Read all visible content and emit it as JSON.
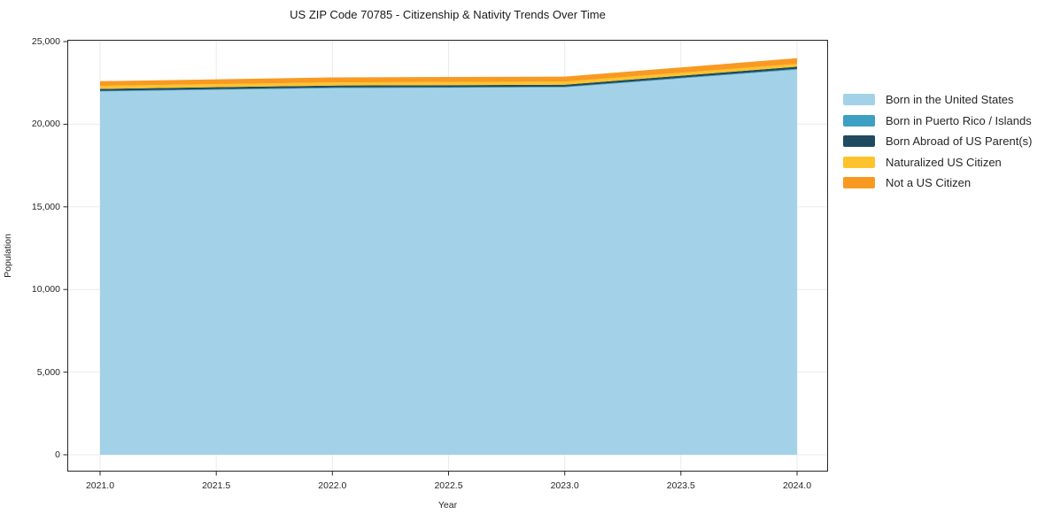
{
  "figure": {
    "title": "US ZIP Code 70785 - Citizenship & Nativity Trends Over Time",
    "xlabel": "Year",
    "ylabel": "Population"
  },
  "chart_data": {
    "type": "area",
    "stacked": true,
    "title": "US ZIP Code 70785 - Citizenship & Nativity Trends Over Time",
    "xlabel": "Year",
    "ylabel": "Population",
    "x": [
      2021,
      2022,
      2023,
      2024
    ],
    "series": [
      {
        "name": "Born in the United States",
        "color": "#a3d2e8",
        "values": [
          21980,
          22180,
          22230,
          23300
        ]
      },
      {
        "name": "Born in Puerto Rico / Islands",
        "color": "#3d9fc1",
        "values": [
          40,
          40,
          40,
          50
        ]
      },
      {
        "name": "Born Abroad of US Parent(s)",
        "color": "#1f4a5f",
        "values": [
          120,
          120,
          120,
          130
        ]
      },
      {
        "name": "Naturalized US Citizen",
        "color": "#fcc32d",
        "values": [
          180,
          190,
          190,
          170
        ]
      },
      {
        "name": "Not a US Citizen",
        "color": "#f89a22",
        "values": [
          280,
          300,
          300,
          350
        ]
      }
    ],
    "x_ticks": [
      {
        "value": 2021.0,
        "label": "2021.0"
      },
      {
        "value": 2021.5,
        "label": "2021.5"
      },
      {
        "value": 2022.0,
        "label": "2022.0"
      },
      {
        "value": 2022.5,
        "label": "2022.5"
      },
      {
        "value": 2023.0,
        "label": "2023.0"
      },
      {
        "value": 2023.5,
        "label": "2023.5"
      },
      {
        "value": 2024.0,
        "label": "2024.0"
      }
    ],
    "y_ticks": [
      {
        "value": 0,
        "label": "0"
      },
      {
        "value": 5000,
        "label": "5,000"
      },
      {
        "value": 10000,
        "label": "10,000"
      },
      {
        "value": 15000,
        "label": "15,000"
      },
      {
        "value": 20000,
        "label": "20,000"
      },
      {
        "value": 25000,
        "label": "25,000"
      }
    ],
    "xlim": [
      2020.86,
      2024.13
    ],
    "ylim": [
      0,
      25000
    ],
    "grid": true,
    "grid_color": "#ebebeb",
    "spine_color": "#262626",
    "legend_position": "right"
  }
}
